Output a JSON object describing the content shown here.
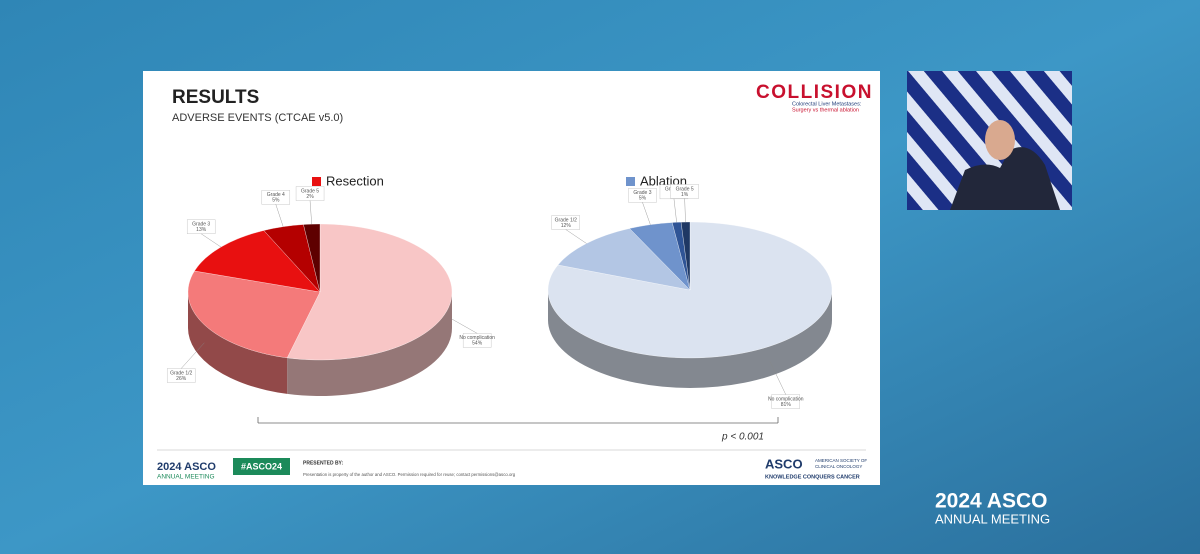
{
  "slide": {
    "title": "RESULTS",
    "subtitle": "ADVERSE EVENTS (CTCAE v5.0)",
    "logo": "COLLISION",
    "logo_tagline": [
      "Colorectal Liver Metastases:",
      "Surgery vs thermal ablation"
    ],
    "p_value": "p < 0.001",
    "footer": {
      "meeting_year": "2024 ASCO",
      "meeting_name": "ANNUAL MEETING",
      "hashtag": "#ASCO24",
      "presented_by": "PRESENTED BY:",
      "notice": "Presentation is property of the author and ASCO. Permission required for reuse; contact permissions@asco.org",
      "asco": "ASCO",
      "society": [
        "AMERICAN SOCIETY OF",
        "CLINICAL ONCOLOGY"
      ],
      "motto": "KNOWLEDGE CONQUERS CANCER"
    }
  },
  "overlay": {
    "year": "2024 ASCO",
    "name": "ANNUAL MEETING"
  },
  "chart_data": [
    {
      "type": "pie",
      "title": "Resection",
      "color": "#e81010",
      "categories": [
        "No complication",
        "Grade 1/2",
        "Grade 3",
        "Grade 4",
        "Grade 5"
      ],
      "values": [
        54,
        26,
        13,
        5,
        2
      ],
      "value_labels": [
        "54%",
        "26%",
        "13%",
        "5%",
        "2%"
      ],
      "colors": [
        "#f8c6c6",
        "#f47a7a",
        "#e81010",
        "#b40000",
        "#5e0000"
      ]
    },
    {
      "type": "pie",
      "title": "Ablation",
      "color": "#6f93cc",
      "categories": [
        "No complication",
        "Grade 1/2",
        "Grade 3",
        "Grade 4",
        "Grade 5"
      ],
      "values": [
        81,
        12,
        5,
        1,
        1
      ],
      "value_labels": [
        "81%",
        "12%",
        "5%",
        "1%",
        "1%"
      ],
      "colors": [
        "#dbe3f0",
        "#b3c6e4",
        "#6f93cc",
        "#2f5496",
        "#1f3864"
      ]
    }
  ]
}
